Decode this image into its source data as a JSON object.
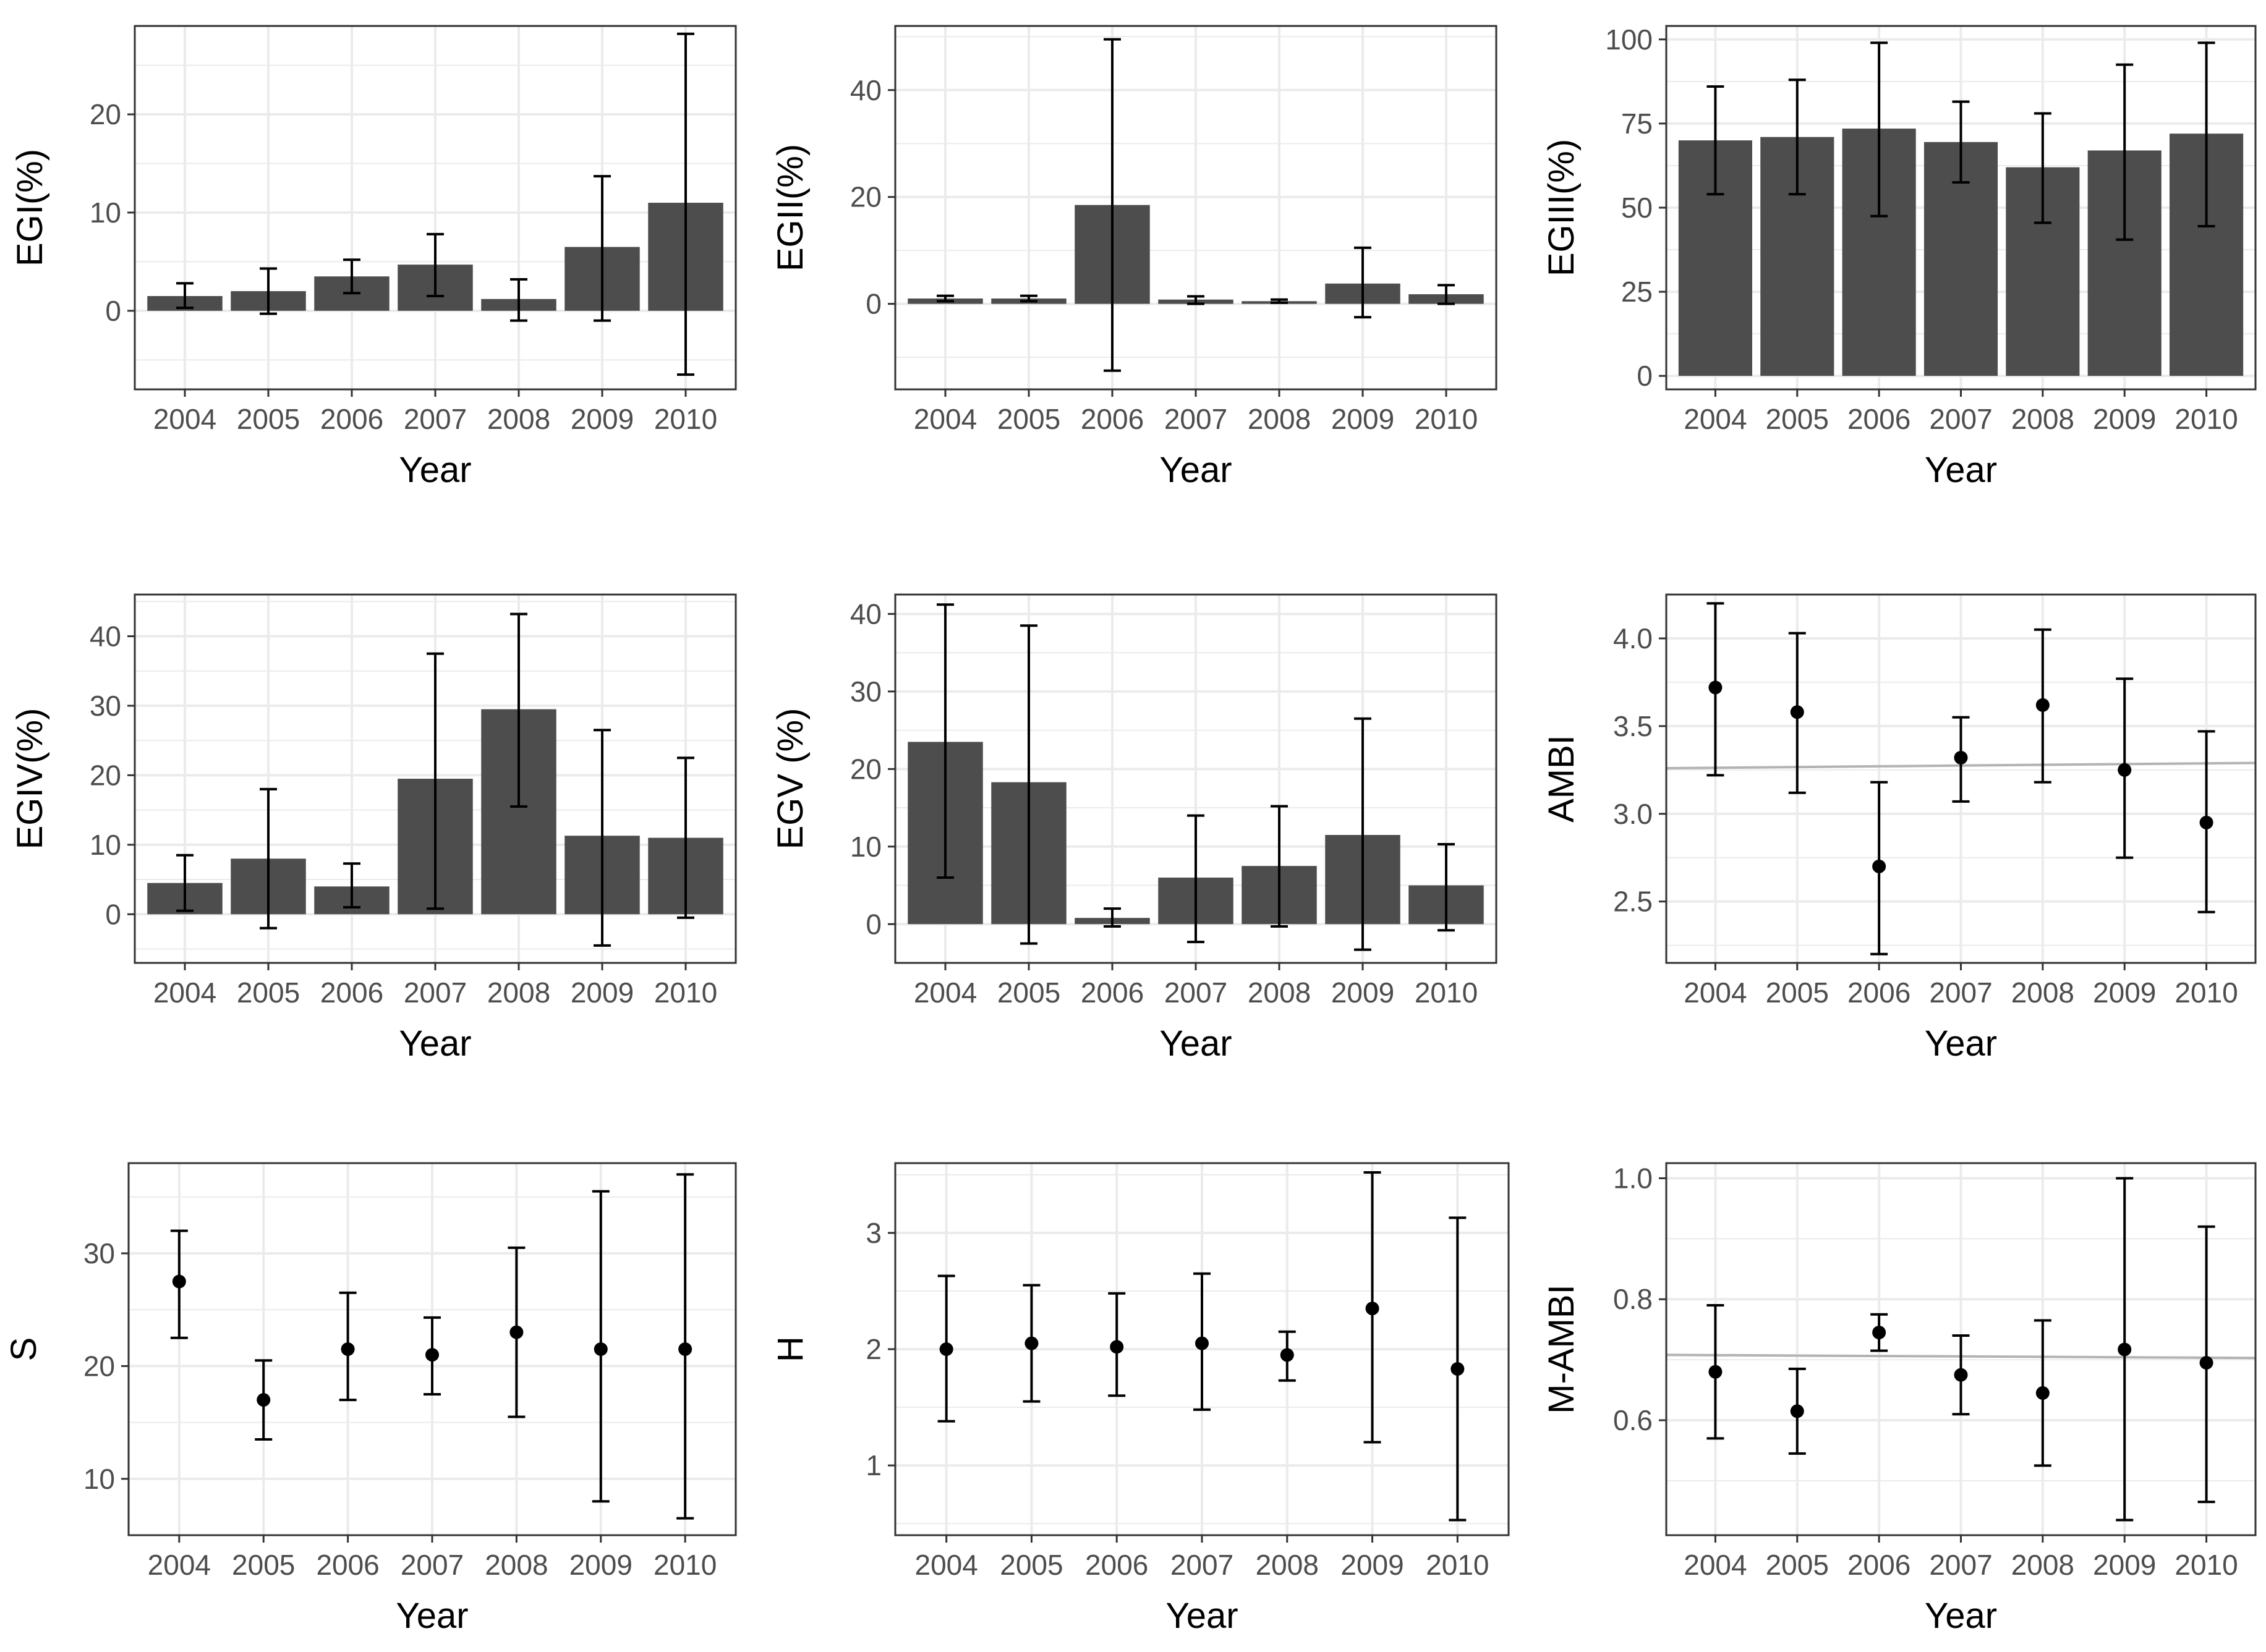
{
  "colors": {
    "bar": "#4d4d4d",
    "grid": "#ebebeb",
    "panel_border": "#333333",
    "ref_line": "#b3b3b3",
    "text": "#4d4d4d",
    "title": "#000000"
  },
  "chart_data": [
    {
      "type": "bar",
      "xlabel": "Year",
      "ylabel": "EGI(%)",
      "categories": [
        "2004",
        "2005",
        "2006",
        "2007",
        "2008",
        "2009",
        "2010"
      ],
      "values": [
        1.5,
        2,
        3.5,
        4.7,
        1.2,
        6.5,
        11
      ],
      "errors": [
        [
          0.3,
          2.8
        ],
        [
          -0.3,
          4.3
        ],
        [
          1.8,
          5.2
        ],
        [
          1.5,
          7.8
        ],
        [
          -1,
          3.2
        ],
        [
          -1,
          13.7
        ],
        [
          -6.5,
          28.2
        ]
      ],
      "ylim": [
        -8,
        29
      ],
      "ticks": [
        0,
        10,
        20
      ]
    },
    {
      "type": "bar",
      "xlabel": "Year",
      "ylabel": "EGII(%)",
      "categories": [
        "2004",
        "2005",
        "2006",
        "2007",
        "2008",
        "2009",
        "2010"
      ],
      "values": [
        1,
        1,
        18.5,
        0.8,
        0.5,
        3.8,
        1.8
      ],
      "errors": [
        [
          0.5,
          1.5
        ],
        [
          0.5,
          1.5
        ],
        [
          -12.5,
          49.5
        ],
        [
          0,
          1.4
        ],
        [
          0.2,
          0.8
        ],
        [
          -2.5,
          10.5
        ],
        [
          0,
          3.5
        ]
      ],
      "ylim": [
        -16,
        52
      ],
      "ticks": [
        0,
        20,
        40
      ]
    },
    {
      "type": "bar",
      "xlabel": "Year",
      "ylabel": "EGIII(%)",
      "categories": [
        "2004",
        "2005",
        "2006",
        "2007",
        "2008",
        "2009",
        "2010"
      ],
      "values": [
        70,
        71,
        73.5,
        69.5,
        62,
        67,
        72
      ],
      "errors": [
        [
          54,
          86
        ],
        [
          54,
          88
        ],
        [
          47.5,
          99
        ],
        [
          57.5,
          81.5
        ],
        [
          45.5,
          78
        ],
        [
          40.5,
          92.5
        ],
        [
          44.5,
          99
        ]
      ],
      "ylim": [
        -4,
        104
      ],
      "ticks": [
        0,
        25,
        50,
        75,
        100
      ]
    },
    {
      "type": "bar",
      "xlabel": "Year",
      "ylabel": "EGIV(%)",
      "categories": [
        "2004",
        "2005",
        "2006",
        "2007",
        "2008",
        "2009",
        "2010"
      ],
      "values": [
        4.5,
        8,
        4,
        19.5,
        29.5,
        11.3,
        11
      ],
      "errors": [
        [
          0.5,
          8.5
        ],
        [
          -2,
          18
        ],
        [
          1,
          7.3
        ],
        [
          0.8,
          37.5
        ],
        [
          15.5,
          43.2
        ],
        [
          -4.5,
          26.5
        ],
        [
          -0.5,
          22.5
        ]
      ],
      "ylim": [
        -7,
        46
      ],
      "ticks": [
        0,
        10,
        20,
        30,
        40
      ]
    },
    {
      "type": "bar",
      "xlabel": "Year",
      "ylabel": "EGV (%)",
      "categories": [
        "2004",
        "2005",
        "2006",
        "2007",
        "2008",
        "2009",
        "2010"
      ],
      "values": [
        23.5,
        18.3,
        0.8,
        6,
        7.5,
        11.5,
        5
      ],
      "errors": [
        [
          6,
          41.2
        ],
        [
          -2.5,
          38.5
        ],
        [
          -0.3,
          2
        ],
        [
          -2.3,
          14
        ],
        [
          -0.3,
          15.2
        ],
        [
          -3.3,
          26.5
        ],
        [
          -0.8,
          10.3
        ]
      ],
      "ylim": [
        -5,
        42.5
      ],
      "ticks": [
        0,
        10,
        20,
        30,
        40
      ]
    },
    {
      "type": "scatter",
      "xlabel": "Year",
      "ylabel": "AMBI",
      "categories": [
        "2004",
        "2005",
        "2006",
        "2007",
        "2008",
        "2009",
        "2010"
      ],
      "values": [
        3.72,
        3.58,
        2.7,
        3.32,
        3.62,
        3.25,
        2.95
      ],
      "errors": [
        [
          3.22,
          4.2
        ],
        [
          3.12,
          4.03
        ],
        [
          2.2,
          3.18
        ],
        [
          3.07,
          3.55
        ],
        [
          3.18,
          4.05
        ],
        [
          2.75,
          3.77
        ],
        [
          2.44,
          3.47
        ]
      ],
      "ylim": [
        2.15,
        4.25
      ],
      "ticks": [
        2.5,
        3.0,
        3.5,
        4.0
      ],
      "tick_labels": [
        "2.5",
        "3.0",
        "3.5",
        "4.0"
      ],
      "ref_line": [
        3.26,
        3.29
      ]
    },
    {
      "type": "scatter",
      "xlabel": "Year",
      "ylabel": "S",
      "categories": [
        "2004",
        "2005",
        "2006",
        "2007",
        "2008",
        "2009",
        "2010"
      ],
      "values": [
        27.5,
        17,
        21.5,
        21,
        23,
        21.5,
        21.5
      ],
      "errors": [
        [
          22.5,
          32
        ],
        [
          13.5,
          20.5
        ],
        [
          17,
          26.5
        ],
        [
          17.5,
          24.3
        ],
        [
          15.5,
          30.5
        ],
        [
          8,
          35.5
        ],
        [
          6.5,
          37
        ]
      ],
      "ylim": [
        5,
        38
      ],
      "ticks": [
        10,
        20,
        30
      ]
    },
    {
      "type": "scatter",
      "xlabel": "Year",
      "ylabel": "H",
      "categories": [
        "2004",
        "2005",
        "2006",
        "2007",
        "2008",
        "2009",
        "2010"
      ],
      "values": [
        2.0,
        2.05,
        2.02,
        2.05,
        1.95,
        2.35,
        1.83
      ],
      "errors": [
        [
          1.38,
          2.63
        ],
        [
          1.55,
          2.55
        ],
        [
          1.6,
          2.48
        ],
        [
          1.48,
          2.65
        ],
        [
          1.73,
          2.15
        ],
        [
          1.2,
          3.52
        ],
        [
          0.53,
          3.13
        ]
      ],
      "ylim": [
        0.4,
        3.6
      ],
      "ticks": [
        1,
        2,
        3
      ]
    },
    {
      "type": "scatter",
      "xlabel": "Year",
      "ylabel": "M-AMBI",
      "categories": [
        "2004",
        "2005",
        "2006",
        "2007",
        "2008",
        "2009",
        "2010"
      ],
      "values": [
        0.68,
        0.615,
        0.745,
        0.675,
        0.645,
        0.717,
        0.695
      ],
      "errors": [
        [
          0.57,
          0.79
        ],
        [
          0.545,
          0.685
        ],
        [
          0.715,
          0.775
        ],
        [
          0.61,
          0.74
        ],
        [
          0.525,
          0.765
        ],
        [
          0.435,
          1.0
        ],
        [
          0.465,
          0.92
        ]
      ],
      "ylim": [
        0.41,
        1.025
      ],
      "ticks": [
        0.6,
        0.8,
        1.0
      ],
      "tick_labels": [
        "0.6",
        "0.8",
        "1.0"
      ],
      "ref_line": [
        0.708,
        0.703
      ]
    }
  ]
}
